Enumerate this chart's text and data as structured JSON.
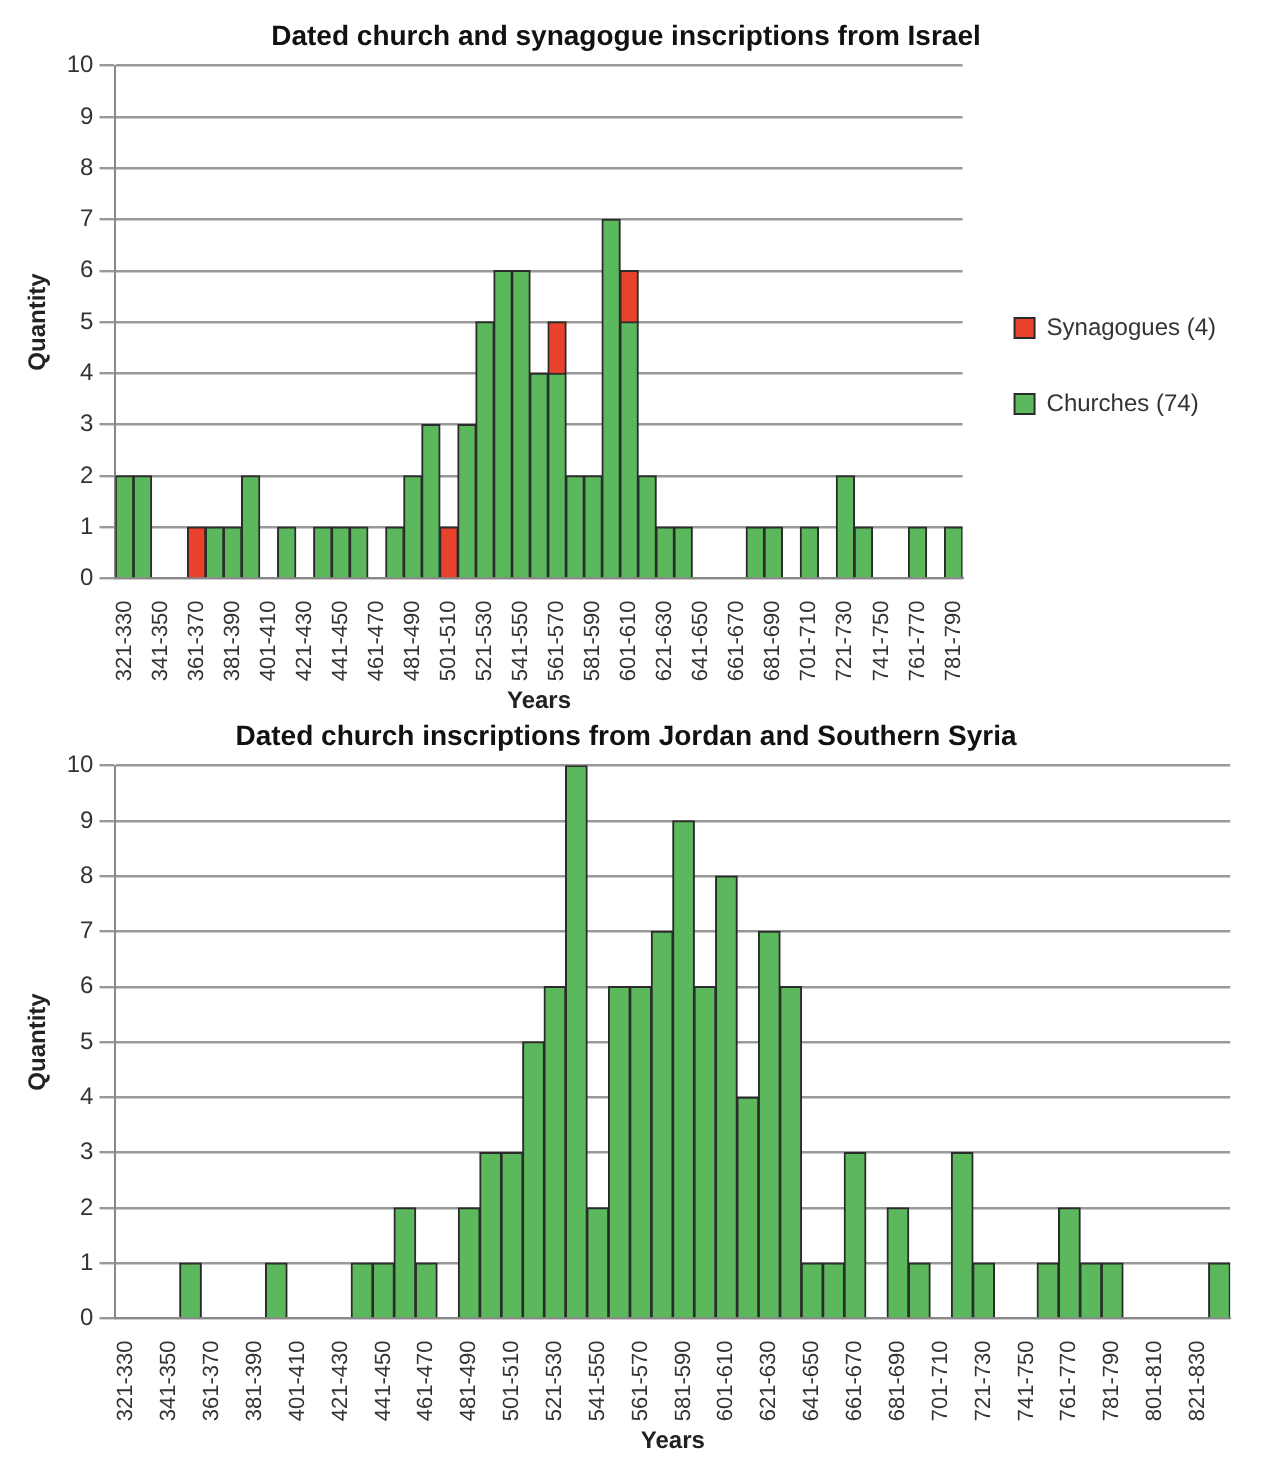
{
  "chart_data": [
    {
      "type": "bar",
      "title": "Dated church and synagogue inscriptions from Israel",
      "xlabel": "Years",
      "ylabel": "Quantity",
      "categories": [
        "321-330",
        null,
        "341-350",
        null,
        "361-370",
        null,
        "381-390",
        null,
        "401-410",
        null,
        "421-430",
        null,
        "441-450",
        null,
        "461-470",
        null,
        "481-490",
        null,
        "501-510",
        null,
        "521-530",
        null,
        "541-550",
        null,
        "561-570",
        null,
        "581-590",
        null,
        "601-610",
        null,
        "621-630",
        null,
        "641-650",
        null,
        "661-670",
        null,
        "681-690",
        null,
        "701-710",
        null,
        "721-730",
        null,
        "741-750",
        null,
        "761-770",
        null,
        "781-790"
      ],
      "series": [
        {
          "name": "Churches (74)",
          "color": "#5cb85c",
          "values": [
            2,
            2,
            0,
            0,
            0,
            1,
            1,
            2,
            0,
            1,
            0,
            1,
            1,
            1,
            0,
            1,
            2,
            3,
            0,
            3,
            5,
            6,
            6,
            4,
            4,
            2,
            2,
            7,
            5,
            2,
            1,
            1,
            0,
            0,
            0,
            1,
            1,
            0,
            1,
            0,
            2,
            1,
            0,
            0,
            1,
            0,
            1
          ]
        },
        {
          "name": "Synagogues (4)",
          "color": "#e8412c",
          "values": [
            0,
            0,
            0,
            0,
            1,
            0,
            0,
            0,
            0,
            0,
            0,
            0,
            0,
            0,
            0,
            0,
            0,
            0,
            1,
            0,
            0,
            0,
            0,
            0,
            1,
            0,
            0,
            0,
            1,
            0,
            0,
            0,
            0,
            0,
            0,
            0,
            0,
            0,
            0,
            0,
            0,
            0,
            0,
            0,
            0,
            0,
            0
          ]
        }
      ],
      "stacked": true,
      "ylim": [
        0,
        10
      ],
      "yticks": [
        0,
        1,
        2,
        3,
        4,
        5,
        6,
        7,
        8,
        9,
        10
      ],
      "grid": "y",
      "legend": "right"
    },
    {
      "type": "bar",
      "title": "Dated church inscriptions from Jordan and Southern Syria",
      "xlabel": "Years",
      "ylabel": "Quantity",
      "categories": [
        "321-330",
        null,
        "341-350",
        null,
        "361-370",
        null,
        "381-390",
        null,
        "401-410",
        null,
        "421-430",
        null,
        "441-450",
        null,
        "461-470",
        null,
        "481-490",
        null,
        "501-510",
        null,
        "521-530",
        null,
        "541-550",
        null,
        "561-570",
        null,
        "581-590",
        null,
        "601-610",
        null,
        "621-630",
        null,
        "641-650",
        null,
        "661-670",
        null,
        "681-690",
        null,
        "701-710",
        null,
        "721-730",
        null,
        "741-750",
        null,
        "761-770",
        null,
        "781-790",
        null,
        "801-810",
        null,
        "821-830",
        null
      ],
      "series": [
        {
          "color": "#5cb85c",
          "values": [
            0,
            0,
            0,
            1,
            0,
            0,
            0,
            1,
            0,
            0,
            0,
            1,
            1,
            2,
            1,
            0,
            2,
            3,
            3,
            5,
            6,
            10,
            2,
            6,
            6,
            7,
            9,
            6,
            8,
            4,
            7,
            6,
            1,
            1,
            3,
            0,
            2,
            1,
            0,
            3,
            1,
            0,
            0,
            1,
            2,
            1,
            1,
            0,
            0,
            0,
            0,
            1
          ]
        }
      ],
      "ylim": [
        0,
        10
      ],
      "yticks": [
        0,
        1,
        2,
        3,
        4,
        5,
        6,
        7,
        8,
        9,
        10
      ],
      "grid": "y"
    }
  ]
}
